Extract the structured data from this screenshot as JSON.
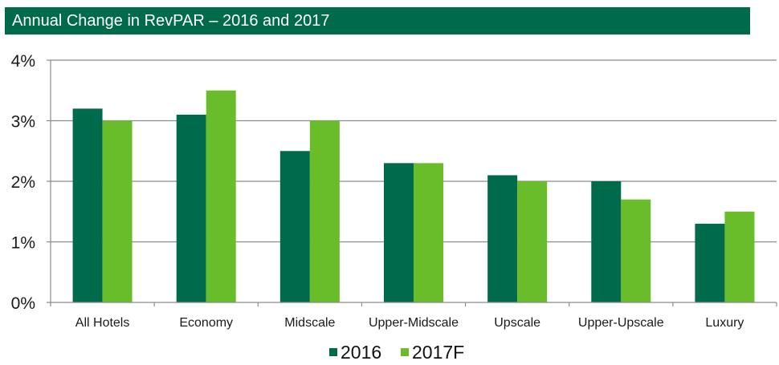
{
  "chart_data": {
    "type": "bar",
    "title": "Annual Change in RevPAR – 2016 and 2017",
    "xlabel": "",
    "ylabel": "",
    "categories": [
      "All Hotels",
      "Economy",
      "Midscale",
      "Upper-Midscale",
      "Upscale",
      "Upper-Upscale",
      "Luxury"
    ],
    "series": [
      {
        "name": "2016",
        "color": "#006B4A",
        "values": [
          3.2,
          3.1,
          2.5,
          2.3,
          2.1,
          2.0,
          1.3
        ]
      },
      {
        "name": "2017F",
        "color": "#6ABD2A",
        "values": [
          3.0,
          3.5,
          3.0,
          2.3,
          2.0,
          1.7,
          1.5
        ]
      }
    ],
    "ylim": [
      0,
      4
    ],
    "yticks": [
      0,
      1,
      2,
      3,
      4
    ],
    "ytick_labels": [
      "0%",
      "1%",
      "2%",
      "3%",
      "4%"
    ],
    "grid": true,
    "legend_position": "bottom-center",
    "title_bar_color": "#006B4A"
  }
}
